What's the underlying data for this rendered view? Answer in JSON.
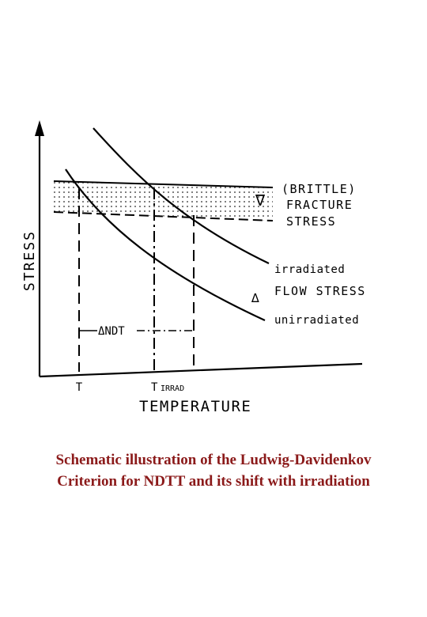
{
  "diagram": {
    "y_axis_label": "STRESS",
    "x_axis_label": "TEMPERATURE",
    "labels": {
      "brittle": "(BRITTLE)",
      "fracture": "FRACTURE",
      "stress": "STRESS",
      "irradiated": "irradiated",
      "flow_stress": "FLOW STRESS",
      "unirradiated": "unirradiated",
      "delta_ndt": "ΔNDT",
      "t": "T",
      "t_irrad": "T",
      "t_irrad_sub": "IRRAD",
      "band_marker": "∇",
      "flow_marker": "∆"
    }
  },
  "caption": {
    "line1": "Schematic illustration of the Ludwig-Davidenkov",
    "line2": "Criterion for NDTT and its shift with irradiation"
  }
}
